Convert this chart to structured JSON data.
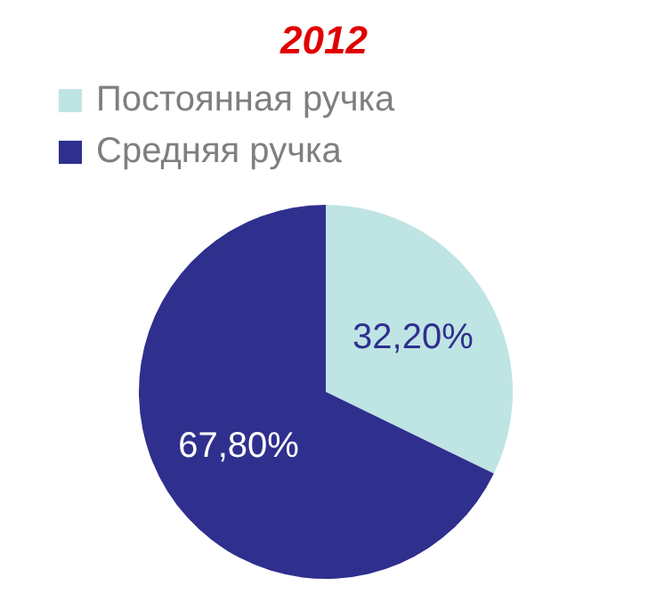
{
  "chart_data": {
    "type": "pie",
    "title": "2012",
    "categories": [
      "Постоянная ручка",
      "Средняя ручка"
    ],
    "values": [
      32.2,
      67.8
    ],
    "colors": [
      "#bfe4e4",
      "#2f2f8e"
    ],
    "value_labels": [
      "32,20%",
      "67,80%"
    ],
    "legend": "top"
  }
}
